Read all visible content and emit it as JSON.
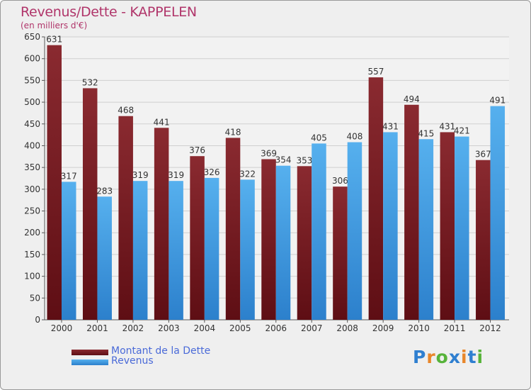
{
  "chart_data": {
    "type": "bar",
    "title": "Revenus/Dette - KAPPELEN",
    "subtitle": "(en milliers d'€)",
    "categories": [
      "2000",
      "2001",
      "2002",
      "2003",
      "2004",
      "2005",
      "2006",
      "2007",
      "2008",
      "2009",
      "2010",
      "2011",
      "2012"
    ],
    "series": [
      {
        "name": "Montant de la Dette",
        "color": "#7a1c22",
        "values": [
          631,
          532,
          468,
          441,
          376,
          418,
          369,
          353,
          306,
          557,
          494,
          431,
          367
        ]
      },
      {
        "name": "Revenus",
        "color": "#3f9be3",
        "values": [
          317,
          283,
          319,
          319,
          326,
          322,
          354,
          405,
          408,
          431,
          415,
          421,
          491
        ]
      }
    ],
    "ylim": [
      0,
      650
    ],
    "yticks": [
      0,
      50,
      100,
      150,
      200,
      250,
      300,
      350,
      400,
      450,
      500,
      550,
      600,
      650
    ],
    "grid": true,
    "legend_position": "bottom-left"
  },
  "logo": {
    "letters": [
      "P",
      "r",
      "o",
      "x",
      "i",
      "t",
      "i"
    ],
    "colors": [
      "#2f7fd0",
      "#e8862a",
      "#57b33a",
      "#2f7fd0",
      "#e8862a",
      "#2f7fd0",
      "#57b33a"
    ]
  }
}
